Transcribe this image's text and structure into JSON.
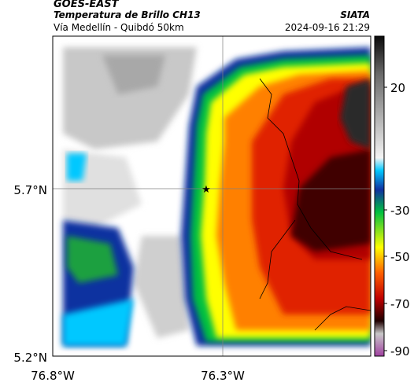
{
  "header": {
    "satellite": "GOES-EAST",
    "product": "Temperatura de Brillo CH13",
    "region": "Vía Medellín - Quibdó 50km",
    "organization": "SIATA",
    "timestamp": "2024-09-16 21:29"
  },
  "axes": {
    "lat_labels": [
      "5.7°N",
      "5.2°N"
    ],
    "lon_labels": [
      "76.8°W",
      "76.3°W"
    ]
  },
  "colorbar": {
    "ticks": [
      "20",
      "-30",
      "-50",
      "-70",
      "-90"
    ],
    "colors": [
      "#1a1a1a",
      "#9a9a9a",
      "#ffffff",
      "#00c8ff",
      "#00d040",
      "#ffff00",
      "#ff6000",
      "#d00000",
      "#300000",
      "#d060c0"
    ]
  },
  "marker": {
    "symbol": "★"
  }
}
